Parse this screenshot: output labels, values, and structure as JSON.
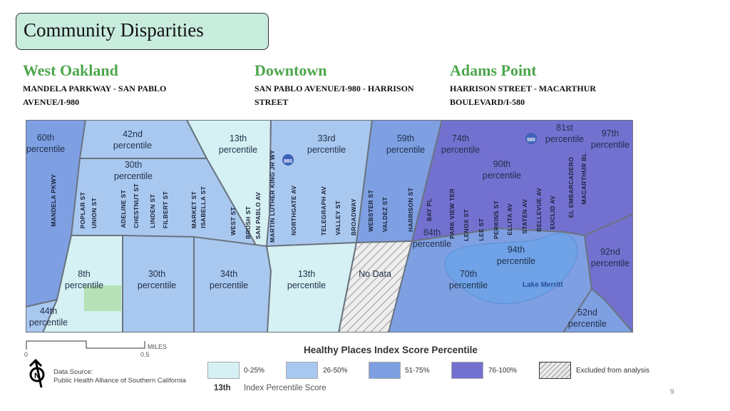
{
  "title": "Community Disparities",
  "areas": [
    {
      "name": "West Oakland",
      "desc": "MANDELA PARKWAY - SAN PABLO AVENUE/I-980"
    },
    {
      "name": "Downtown",
      "desc": "SAN PABLO AVENUE/I-980 - HARRISON STREET"
    },
    {
      "name": "Adams Point",
      "desc": "HARRISON STREET - MACARTHUR BOULEVARD/I-580"
    }
  ],
  "colors": {
    "q1": "#d6f1f3",
    "q2": "#a9c8ef",
    "q3": "#7e9fe2",
    "q4": "#7371d0",
    "title_bg": "#c8ecdd",
    "area_heading": "#4ca64c"
  },
  "percentiles": [
    "60th",
    "42nd",
    "30th",
    "13th",
    "33rd",
    "59th",
    "74th",
    "90th",
    "81st",
    "97th",
    "84th",
    "94th",
    "92nd",
    "70th",
    "52nd",
    "8th",
    "30th",
    "34th",
    "13th",
    "44th"
  ],
  "percentile_word": "percentile",
  "no_data": "No Data",
  "lake": "Lake Merritt",
  "highways": [
    "980",
    "580"
  ],
  "streets": [
    "MANDELA PKWY",
    "POPLAR ST",
    "UNION ST",
    "ADELINE ST",
    "CHESTNUT ST",
    "LINDEN ST",
    "FILBERT ST",
    "MARKET ST",
    "ISABELLA ST",
    "WEST ST",
    "BRUSH ST",
    "SAN PABLO AV",
    "MARTIN LUTHER KING JR WY",
    "NORTHGATE AV",
    "TELEGRAPH AV",
    "VALLEY ST",
    "BROADWAY",
    "WEBSTER ST",
    "VALDEZ ST",
    "HARRISON ST",
    "BAY PL",
    "PARK VIEW TER",
    "LENOX ST",
    "LEE ST",
    "PERKINS ST",
    "ELLITA AV",
    "STATEN AV",
    "BELLEVUE AV",
    "EUCLID AV",
    "EL EMBARCADERO",
    "MACARTHUR BL"
  ],
  "scale": {
    "start": "0",
    "end": "0.5",
    "unit": "MILES"
  },
  "legend": {
    "title": "Healthy Places Index Score Percentile",
    "items": [
      "0-25%",
      "26-50%",
      "51-75%",
      "76-100%",
      "Excluded from analysis"
    ],
    "example_value": "13th",
    "example_label": "Index Percentile Score"
  },
  "source": {
    "label": "Data Source:",
    "name": "Public Health Alliance of Southern California"
  },
  "page_number": "9"
}
